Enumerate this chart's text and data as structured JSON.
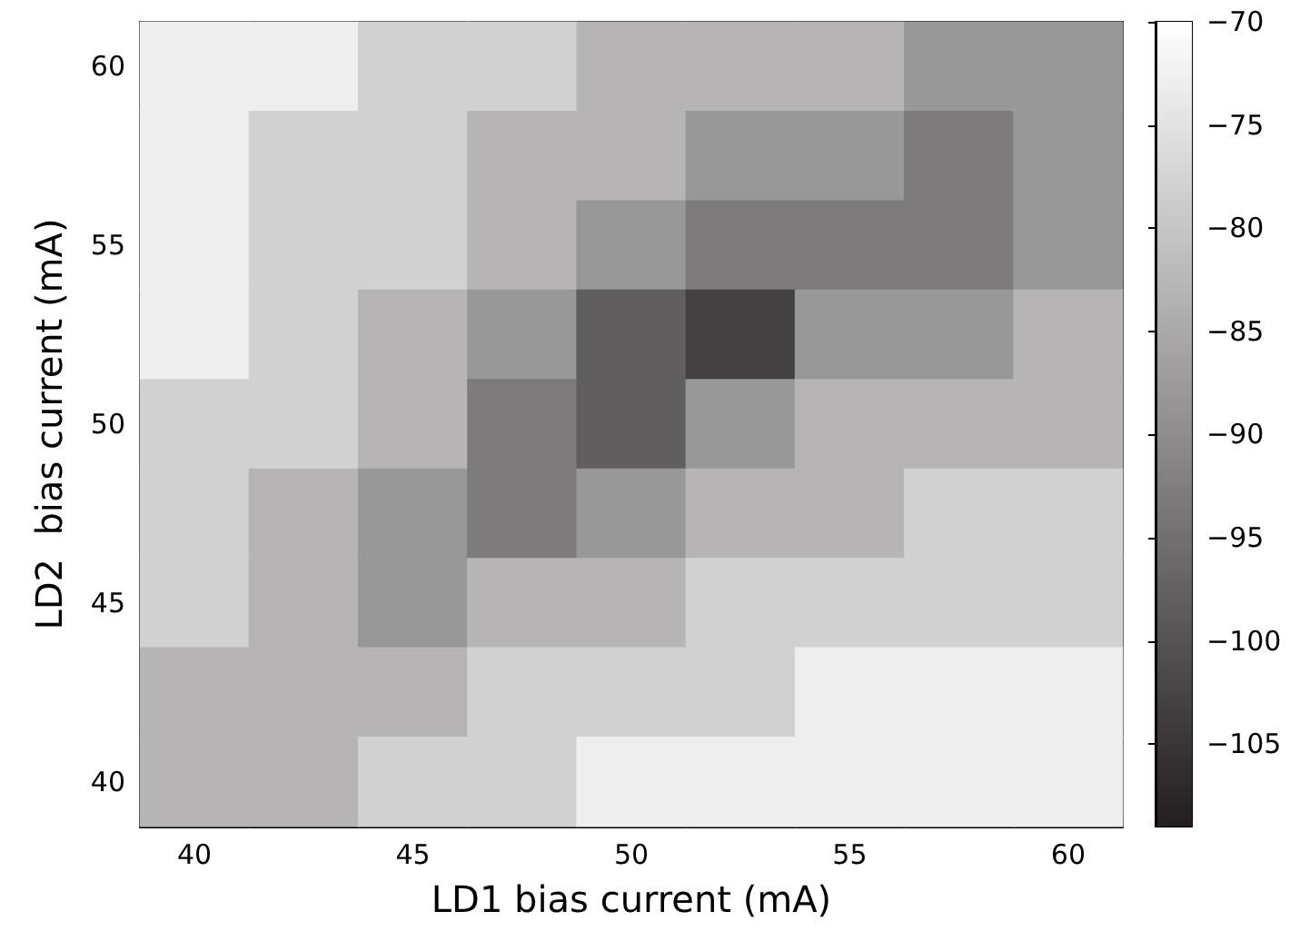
{
  "chart_data": {
    "type": "heatmap",
    "xlabel": "LD1 bias current (mA)",
    "ylabel": "LD2  bias current (mA)",
    "categories": [
      "40",
      null,
      "45",
      null,
      "50",
      null,
      "55",
      null,
      "60"
    ],
    "y_categories": [
      "60",
      null,
      "55",
      null,
      "50",
      null,
      "45",
      null,
      "40"
    ],
    "cells": [
      [
        -73,
        -73,
        -78,
        -78,
        -83,
        -83,
        -83,
        -88,
        -88
      ],
      [
        -73,
        -78,
        -78,
        -83,
        -83,
        -88,
        -88,
        -93,
        -88
      ],
      [
        -73,
        -78,
        -78,
        -83,
        -88,
        -93,
        -93,
        -93,
        -88
      ],
      [
        -73,
        -78,
        -83,
        -88,
        -98,
        -103,
        -88,
        -88,
        -83
      ],
      [
        -78,
        -78,
        -83,
        -93,
        -98,
        -88,
        -83,
        -83,
        -83
      ],
      [
        -78,
        -83,
        -88,
        -93,
        -88,
        -83,
        -83,
        -78,
        -78
      ],
      [
        -78,
        -83,
        -88,
        -83,
        -83,
        -78,
        -78,
        -78,
        -78
      ],
      [
        -83,
        -83,
        -83,
        -78,
        -78,
        -78,
        -73,
        -73,
        -73
      ],
      [
        -83,
        -83,
        -78,
        -78,
        -73,
        -73,
        -73,
        -73,
        -73
      ]
    ],
    "clim": [
      -109,
      -70
    ],
    "cticks": [
      -70,
      -75,
      -80,
      -85,
      -90,
      -95,
      -100,
      -105
    ]
  }
}
